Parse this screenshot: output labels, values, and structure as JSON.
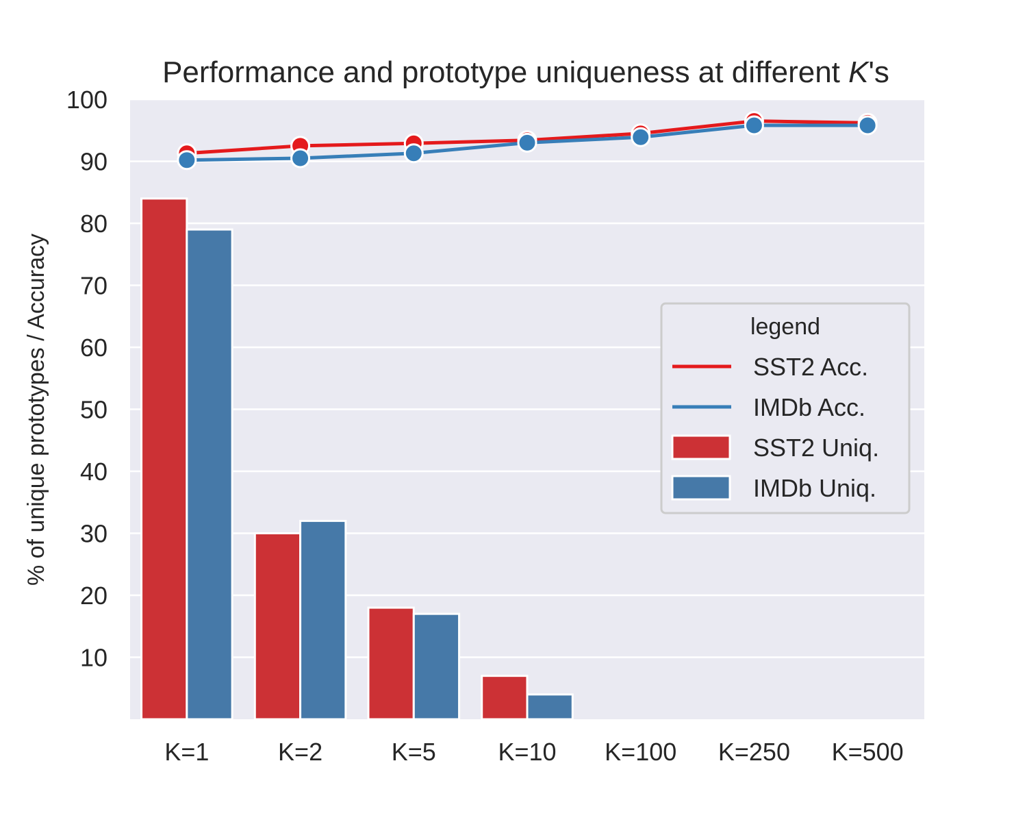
{
  "chart_data": {
    "type": "bar",
    "title_main": "Performance and prototype uniqueness at different ",
    "title_italic": "K",
    "title_tail": "'s",
    "xlabel": "",
    "ylabel": "% of unique prototypes / Accuracy",
    "categories": [
      "K=1",
      "K=2",
      "K=5",
      "K=10",
      "K=100",
      "K=250",
      "K=500"
    ],
    "y_ticks": [
      "10",
      "20",
      "30",
      "40",
      "50",
      "60",
      "70",
      "80",
      "90",
      "100"
    ],
    "ylim": [
      0,
      100
    ],
    "grid": true,
    "legend_title": "legend",
    "legend_position": "center-right",
    "bars": [
      {
        "name": "SST2 Uniq.",
        "color": "#cc3135",
        "values": [
          84,
          30,
          18,
          7,
          0,
          0,
          0
        ]
      },
      {
        "name": "IMDb Uniq.",
        "color": "#4679a8",
        "values": [
          79,
          32,
          17,
          4,
          0,
          0,
          0
        ]
      }
    ],
    "lines": [
      {
        "name": "SST2 Acc.",
        "color": "#e41a1c",
        "values": [
          91.3,
          92.5,
          92.9,
          93.4,
          94.5,
          96.5,
          96.2
        ]
      },
      {
        "name": "IMDb Acc.",
        "color": "#377eb8",
        "values": [
          90.2,
          90.5,
          91.3,
          93.0,
          93.9,
          95.8,
          95.8
        ]
      }
    ],
    "legend_items": [
      {
        "label": "SST2 Acc.",
        "kind": "line",
        "color": "#e41a1c"
      },
      {
        "label": "IMDb Acc.",
        "kind": "line",
        "color": "#377eb8"
      },
      {
        "label": "SST2 Uniq.",
        "kind": "patch",
        "color": "#cc3135"
      },
      {
        "label": "IMDb Uniq.",
        "kind": "patch",
        "color": "#4679a8"
      }
    ]
  }
}
